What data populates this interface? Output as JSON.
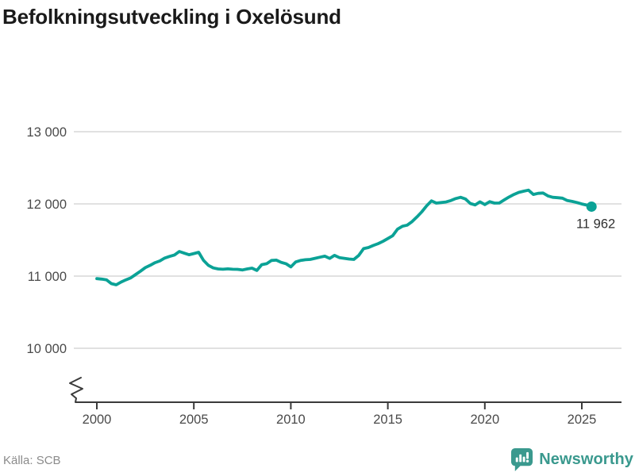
{
  "header": {
    "title": "Befolkningsutveckling i Oxelösund"
  },
  "footer": {
    "source": "Källa: SCB",
    "brand": "Newsworthy"
  },
  "colors": {
    "line": "#0ba296",
    "grid": "#e1e1e1",
    "axis": "#3a3a3a",
    "tick_text": "#4a4a4a",
    "annotation_text": "#2f2f2f",
    "source_text": "#8b8b8b",
    "brand": "#3a998e"
  },
  "chart_data": {
    "type": "line",
    "title": "Befolkningsutveckling i Oxelösund",
    "xlabel": "",
    "ylabel": "",
    "x_start": 2000,
    "x_step": 0.25,
    "values": [
      10965,
      10958,
      10948,
      10896,
      10879,
      10918,
      10948,
      10976,
      11022,
      11068,
      11118,
      11150,
      11186,
      11210,
      11250,
      11272,
      11292,
      11341,
      11318,
      11296,
      11312,
      11330,
      11218,
      11150,
      11113,
      11099,
      11094,
      11100,
      11094,
      11093,
      11085,
      11099,
      11110,
      11078,
      11158,
      11171,
      11216,
      11221,
      11190,
      11171,
      11128,
      11196,
      11216,
      11226,
      11231,
      11246,
      11262,
      11276,
      11245,
      11287,
      11256,
      11246,
      11236,
      11231,
      11286,
      11380,
      11396,
      11424,
      11450,
      11481,
      11520,
      11559,
      11649,
      11690,
      11706,
      11755,
      11820,
      11890,
      11974,
      12042,
      12011,
      12019,
      12026,
      12046,
      12074,
      12091,
      12068,
      12006,
      11986,
      12029,
      11990,
      12031,
      12011,
      12012,
      12055,
      12096,
      12131,
      12159,
      12176,
      12190,
      12131,
      12146,
      12151,
      12111,
      12091,
      12086,
      12079,
      12046,
      12034,
      12019,
      11999,
      11984,
      11962
    ],
    "last_value": 11962,
    "last_point_label": "11 962",
    "yticks": [
      {
        "label": "13 000",
        "value": 13000
      },
      {
        "label": "12 000",
        "value": 12000
      },
      {
        "label": "11 000",
        "value": 11000
      },
      {
        "label": "10 000",
        "value": 10000
      }
    ],
    "xticks": [
      {
        "label": "2000",
        "value": 2000
      },
      {
        "label": "2005",
        "value": 2005
      },
      {
        "label": "2010",
        "value": 2010
      },
      {
        "label": "2015",
        "value": 2015
      },
      {
        "label": "2020",
        "value": 2020
      },
      {
        "label": "2025",
        "value": 2025
      }
    ],
    "ylim": [
      10000,
      13000
    ],
    "axis_break": true,
    "grid": "horizontal",
    "legend": "none",
    "source": "Källa: SCB"
  }
}
